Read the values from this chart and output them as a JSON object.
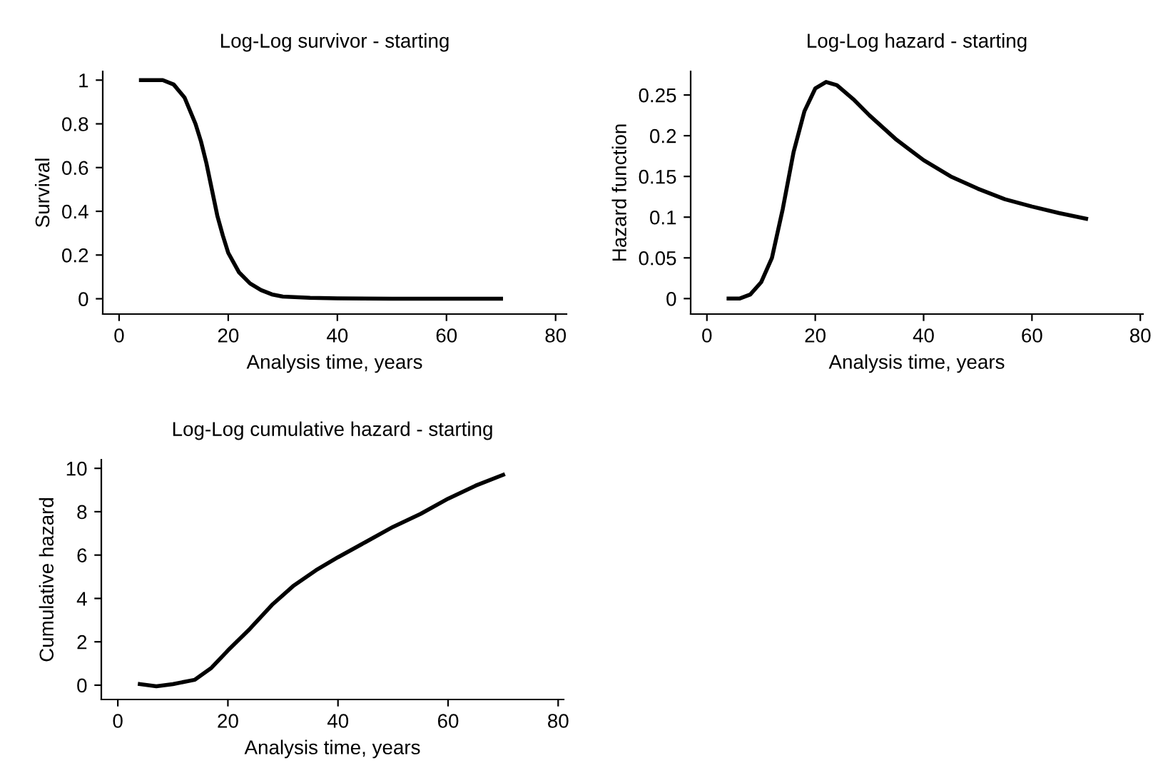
{
  "chart_data": [
    {
      "type": "line",
      "title": "Log-Log survivor - starting",
      "xlabel": "Analysis time, years",
      "ylabel": "Survival",
      "grid": false,
      "legend": false,
      "series": [
        {
          "color": "#000000",
          "x": [
            4,
            8,
            10,
            12,
            14,
            15,
            16,
            17,
            18,
            19,
            20,
            22,
            24,
            26,
            28,
            30,
            35,
            40,
            50,
            60,
            70
          ],
          "values": [
            1.0,
            1.0,
            0.98,
            0.92,
            0.8,
            0.72,
            0.62,
            0.5,
            0.38,
            0.29,
            0.21,
            0.12,
            0.07,
            0.04,
            0.02,
            0.01,
            0.004,
            0.002,
            0,
            0,
            0
          ]
        }
      ],
      "xlim": [
        -3,
        82
      ],
      "xticks": [
        0,
        20,
        40,
        60,
        80
      ],
      "ylim": [
        -0.07,
        1.04
      ],
      "yticks": [
        0,
        0.2,
        0.4,
        0.6,
        0.8,
        1
      ]
    },
    {
      "type": "line",
      "title": "Log-Log hazard - starting",
      "xlabel": "Analysis time, years",
      "ylabel": "Hazard function",
      "grid": false,
      "legend": false,
      "series": [
        {
          "color": "#000000",
          "x": [
            4,
            6,
            8,
            10,
            12,
            14,
            16,
            18,
            20,
            22,
            24,
            27,
            30,
            35,
            40,
            45,
            50,
            55,
            60,
            65,
            70
          ],
          "values": [
            0,
            0,
            0.005,
            0.02,
            0.05,
            0.11,
            0.18,
            0.23,
            0.258,
            0.266,
            0.262,
            0.245,
            0.225,
            0.195,
            0.17,
            0.15,
            0.135,
            0.122,
            0.113,
            0.105,
            0.098
          ]
        }
      ],
      "xlim": [
        -3,
        80.5
      ],
      "xticks": [
        0,
        20,
        40,
        60,
        80
      ],
      "ylim": [
        -0.019,
        0.279
      ],
      "yticks": [
        0,
        0.05,
        0.1,
        0.15,
        0.2,
        0.25
      ]
    },
    {
      "type": "line",
      "title": "Log-Log cumulative hazard - starting",
      "xlabel": "Analysis time, years",
      "ylabel": "Cumulative hazard",
      "grid": false,
      "legend": false,
      "series": [
        {
          "color": "#000000",
          "x": [
            4,
            7,
            10,
            14,
            17,
            20,
            24,
            28,
            32,
            36,
            40,
            45,
            50,
            55,
            60,
            65,
            70
          ],
          "values": [
            0.05,
            -0.05,
            0.05,
            0.25,
            0.8,
            1.6,
            2.6,
            3.7,
            4.6,
            5.3,
            5.9,
            6.6,
            7.3,
            7.9,
            8.6,
            9.2,
            9.7
          ]
        }
      ],
      "xlim": [
        -3,
        81
      ],
      "xticks": [
        0,
        20,
        40,
        60,
        80
      ],
      "ylim": [
        -0.66,
        10.4
      ],
      "yticks": [
        0,
        2,
        4,
        6,
        8,
        10
      ]
    }
  ]
}
